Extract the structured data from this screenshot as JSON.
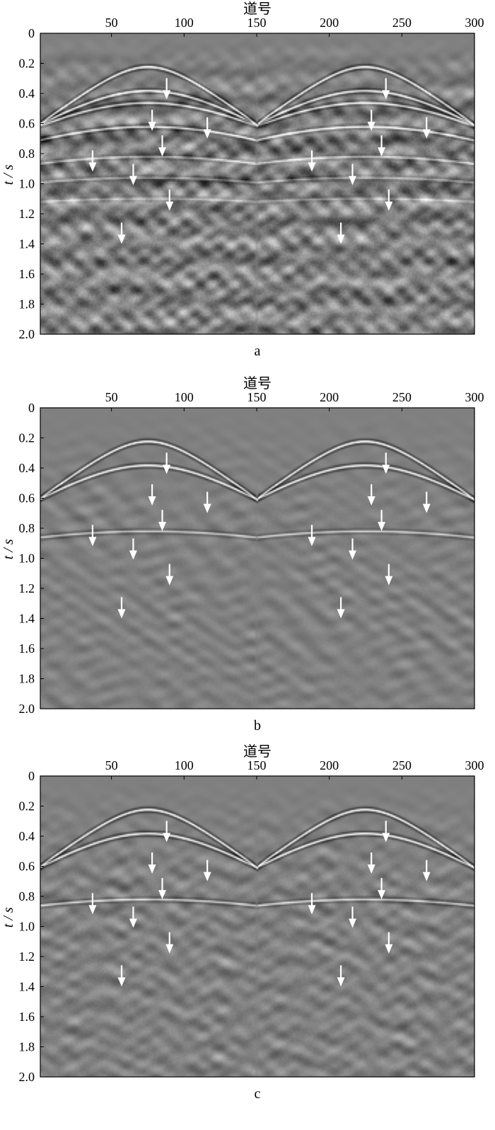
{
  "figure": {
    "colors": {
      "background": "#ffffff",
      "panel_bg": "#808080",
      "axis": "#000000",
      "arrow": "#ffffff"
    }
  },
  "chart_data": [
    {
      "type": "heatmap",
      "panel_label": "a",
      "xlabel": "道号",
      "ylabel": "t / s",
      "xlim": [
        1,
        300
      ],
      "ylim": [
        2.0,
        0
      ],
      "x_ticks": [
        50,
        100,
        150,
        200,
        250,
        300
      ],
      "x_tick_labels": [
        "50",
        "100",
        "150",
        "200",
        "250",
        "300"
      ],
      "y_ticks": [
        0,
        0.2,
        0.4,
        0.6,
        0.8,
        1.0,
        1.2,
        1.4,
        1.6,
        1.8,
        2.0
      ],
      "y_tick_labels": [
        "0",
        "0.2",
        "0.4",
        "0.6",
        "0.8",
        "1.0",
        "1.2",
        "1.4",
        "1.6",
        "1.8",
        "2.0"
      ],
      "shots": [
        75,
        225
      ],
      "events": [
        {
          "apex": 0.22,
          "v": 1.6,
          "amp": 1.0
        },
        {
          "apex": 0.38,
          "v": 1.9,
          "amp": 0.9
        },
        {
          "apex": 0.46,
          "v": 2.2,
          "amp": 0.8
        },
        {
          "apex": 0.62,
          "v": 2.6,
          "amp": 0.7
        },
        {
          "apex": 0.82,
          "v": 3.2,
          "amp": 0.45
        },
        {
          "apex": 0.96,
          "v": 3.6,
          "amp": 0.35
        },
        {
          "apex": 1.1,
          "v": 4.2,
          "amp": 0.25
        }
      ],
      "noise": 0.9,
      "arrows": [
        {
          "x": 88,
          "t": 0.43
        },
        {
          "x": 78,
          "t": 0.64
        },
        {
          "x": 116,
          "t": 0.69
        },
        {
          "x": 85,
          "t": 0.81
        },
        {
          "x": 37,
          "t": 0.91
        },
        {
          "x": 65,
          "t": 1.0
        },
        {
          "x": 90,
          "t": 1.17
        },
        {
          "x": 57,
          "t": 1.39
        },
        {
          "x": 239,
          "t": 0.43
        },
        {
          "x": 229,
          "t": 0.64
        },
        {
          "x": 267,
          "t": 0.69
        },
        {
          "x": 236,
          "t": 0.81
        },
        {
          "x": 188,
          "t": 0.91
        },
        {
          "x": 216,
          "t": 1.0
        },
        {
          "x": 241,
          "t": 1.17
        },
        {
          "x": 208,
          "t": 1.39
        }
      ]
    },
    {
      "type": "heatmap",
      "panel_label": "b",
      "xlabel": "道号",
      "ylabel": "t / s",
      "xlim": [
        1,
        300
      ],
      "ylim": [
        2.0,
        0
      ],
      "x_ticks": [
        50,
        100,
        150,
        200,
        250,
        300
      ],
      "x_tick_labels": [
        "50",
        "100",
        "150",
        "200",
        "250",
        "300"
      ],
      "y_ticks": [
        0,
        0.2,
        0.4,
        0.6,
        0.8,
        1.0,
        1.2,
        1.4,
        1.6,
        1.8,
        2.0
      ],
      "y_tick_labels": [
        "0",
        "0.2",
        "0.4",
        "0.6",
        "0.8",
        "1.0",
        "1.2",
        "1.4",
        "1.6",
        "1.8",
        "2.0"
      ],
      "shots": [
        75,
        225
      ],
      "events": [
        {
          "apex": 0.22,
          "v": 1.6,
          "amp": 1.0
        },
        {
          "apex": 0.38,
          "v": 1.9,
          "amp": 0.9
        },
        {
          "apex": 0.82,
          "v": 3.4,
          "amp": 0.55
        }
      ],
      "noise": 0.25,
      "arrows": [
        {
          "x": 88,
          "t": 0.43
        },
        {
          "x": 78,
          "t": 0.64
        },
        {
          "x": 116,
          "t": 0.69
        },
        {
          "x": 85,
          "t": 0.81
        },
        {
          "x": 37,
          "t": 0.91
        },
        {
          "x": 65,
          "t": 1.0
        },
        {
          "x": 90,
          "t": 1.17
        },
        {
          "x": 57,
          "t": 1.39
        },
        {
          "x": 239,
          "t": 0.43
        },
        {
          "x": 229,
          "t": 0.64
        },
        {
          "x": 267,
          "t": 0.69
        },
        {
          "x": 236,
          "t": 0.81
        },
        {
          "x": 188,
          "t": 0.91
        },
        {
          "x": 216,
          "t": 1.0
        },
        {
          "x": 241,
          "t": 1.17
        },
        {
          "x": 208,
          "t": 1.39
        }
      ]
    },
    {
      "type": "heatmap",
      "panel_label": "c",
      "xlabel": "道号",
      "ylabel": "t / s",
      "xlim": [
        1,
        300
      ],
      "ylim": [
        2.0,
        0
      ],
      "x_ticks": [
        50,
        100,
        150,
        200,
        250,
        300
      ],
      "x_tick_labels": [
        "50",
        "100",
        "150",
        "200",
        "250",
        "300"
      ],
      "y_ticks": [
        0,
        0.2,
        0.4,
        0.6,
        0.8,
        1.0,
        1.2,
        1.4,
        1.6,
        1.8,
        2.0
      ],
      "y_tick_labels": [
        "0",
        "0.2",
        "0.4",
        "0.6",
        "0.8",
        "1.0",
        "1.2",
        "1.4",
        "1.6",
        "1.8",
        "2.0"
      ],
      "shots": [
        75,
        225
      ],
      "events": [
        {
          "apex": 0.22,
          "v": 1.6,
          "amp": 1.0
        },
        {
          "apex": 0.38,
          "v": 1.9,
          "amp": 0.9
        },
        {
          "apex": 0.82,
          "v": 3.4,
          "amp": 0.6
        }
      ],
      "noise": 0.4,
      "arrows": [
        {
          "x": 88,
          "t": 0.43
        },
        {
          "x": 78,
          "t": 0.64
        },
        {
          "x": 116,
          "t": 0.69
        },
        {
          "x": 85,
          "t": 0.81
        },
        {
          "x": 37,
          "t": 0.91
        },
        {
          "x": 65,
          "t": 1.0
        },
        {
          "x": 90,
          "t": 1.17
        },
        {
          "x": 57,
          "t": 1.39
        },
        {
          "x": 239,
          "t": 0.43
        },
        {
          "x": 229,
          "t": 0.64
        },
        {
          "x": 267,
          "t": 0.69
        },
        {
          "x": 236,
          "t": 0.81
        },
        {
          "x": 188,
          "t": 0.91
        },
        {
          "x": 216,
          "t": 1.0
        },
        {
          "x": 241,
          "t": 1.17
        },
        {
          "x": 208,
          "t": 1.39
        }
      ]
    }
  ]
}
